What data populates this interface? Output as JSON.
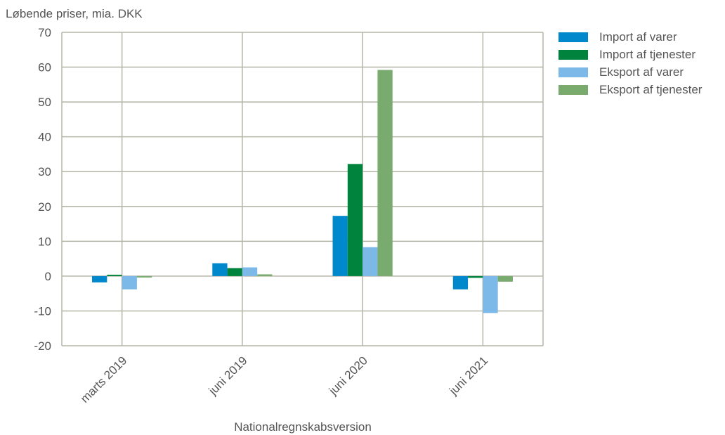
{
  "chart_data": {
    "type": "bar",
    "title": "",
    "unit_label": "Løbende priser, mia. DKK",
    "xlabel": "Nationalregnskabsversion",
    "ylabel": "",
    "ylim": [
      -20,
      70
    ],
    "yticks": [
      -20,
      -10,
      0,
      10,
      20,
      30,
      40,
      50,
      60,
      70
    ],
    "grid": true,
    "legend_position": "right",
    "categories": [
      "marts 2019",
      "juni 2019",
      "juni 2020",
      "juni 2021"
    ],
    "series": [
      {
        "name": "Import af varer",
        "color": "#0088cc",
        "values": [
          -1.8,
          3.7,
          17.3,
          -3.8
        ]
      },
      {
        "name": "Import af tjenester",
        "color": "#00843d",
        "values": [
          0.4,
          2.3,
          32.2,
          -0.5
        ]
      },
      {
        "name": "Eksport af varer",
        "color": "#7cb9e8",
        "values": [
          -3.8,
          2.5,
          8.3,
          -10.6
        ]
      },
      {
        "name": "Eksport af tjenester",
        "color": "#7aab6e",
        "values": [
          -0.4,
          0.5,
          59.2,
          -1.6
        ]
      }
    ]
  }
}
